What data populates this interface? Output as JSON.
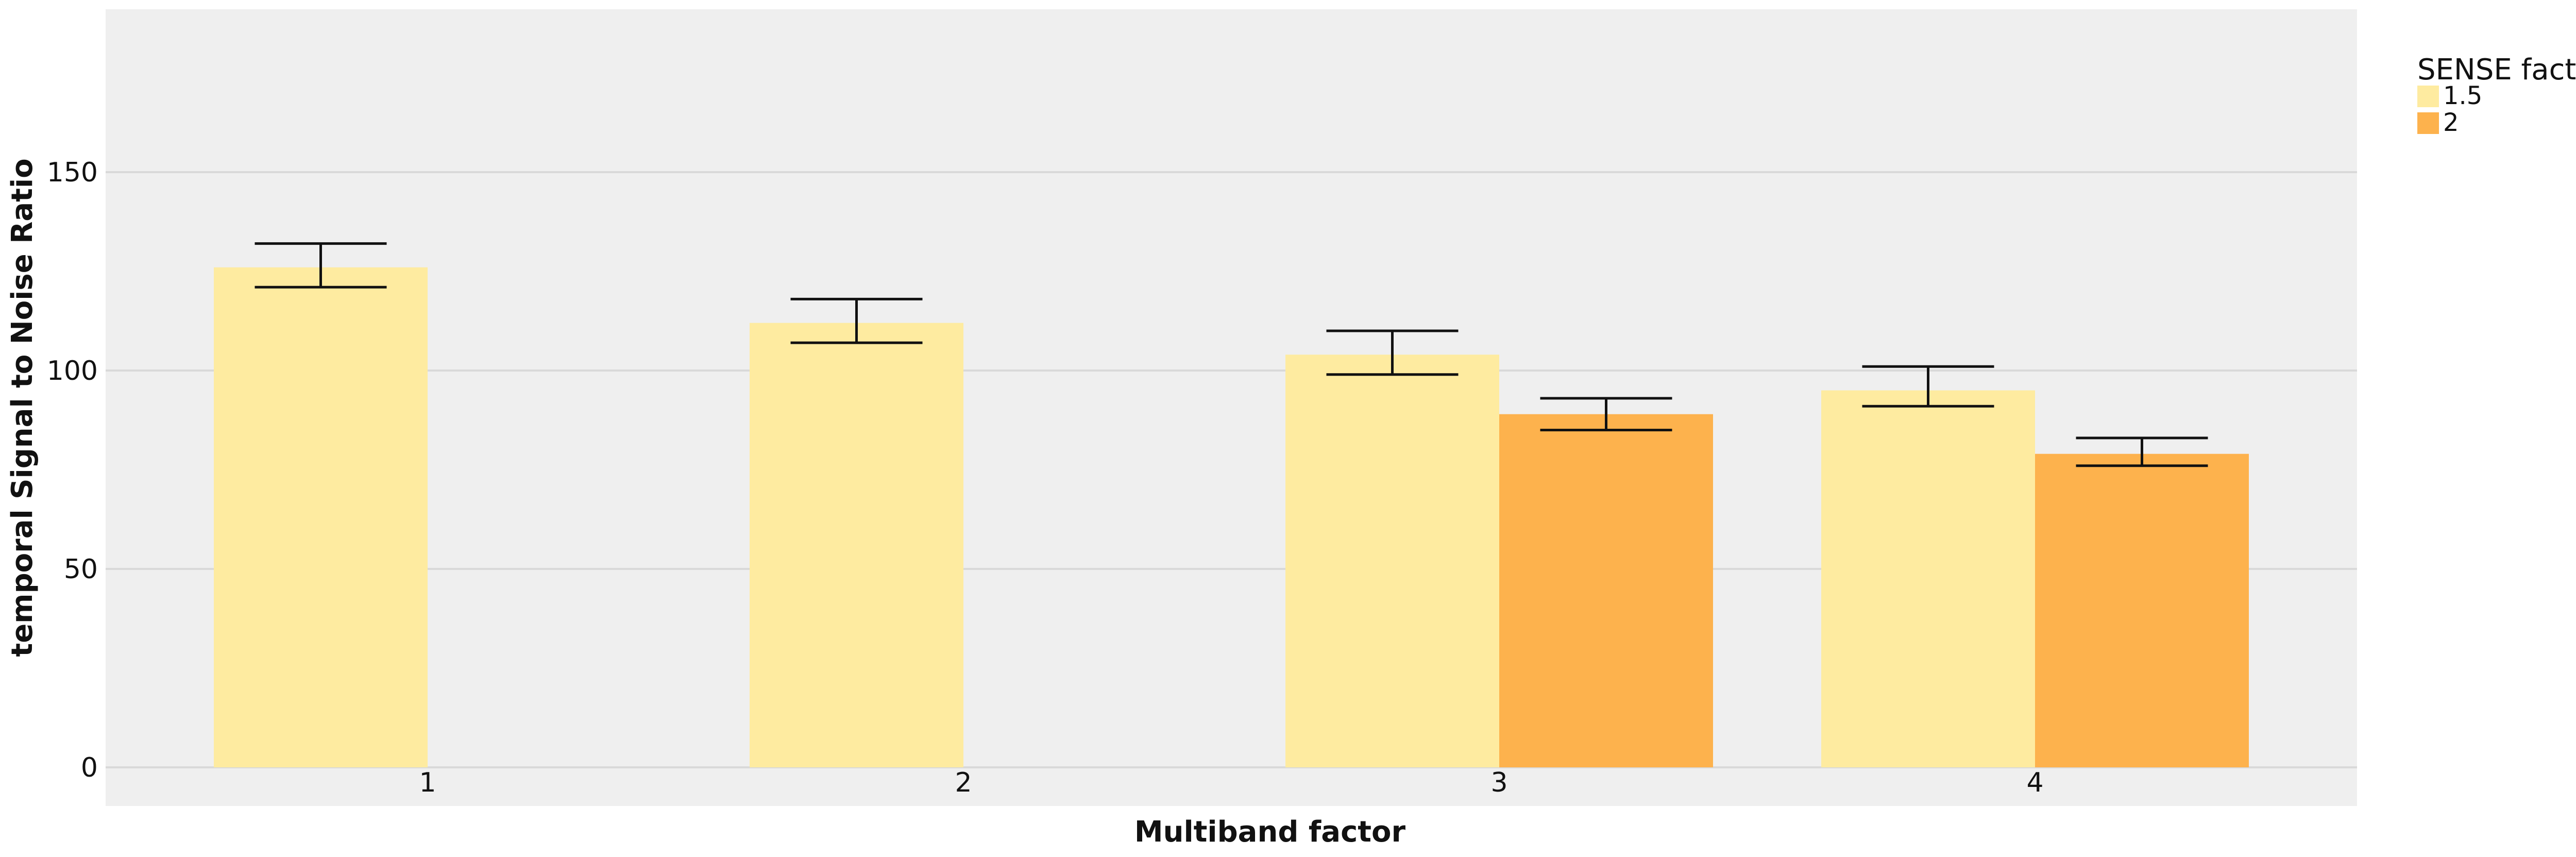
{
  "chart_data": {
    "type": "bar",
    "title": "",
    "xlabel": "Multiband factor",
    "ylabel": "temporal Signal to Noise Ratio",
    "categories": [
      "1",
      "2",
      "3",
      "4"
    ],
    "ylim": [
      0,
      187
    ],
    "yticks": [
      0,
      50,
      100,
      150
    ],
    "ytick_labels": [
      "0",
      "50",
      "100",
      "150"
    ],
    "grid": true,
    "legend": {
      "title": "SENSE factor",
      "position": "right-top"
    },
    "series": [
      {
        "name": "1.5",
        "color": "#FEEBA0",
        "values": [
          126,
          112,
          104,
          95
        ],
        "error_low": [
          121,
          107,
          99,
          91
        ],
        "error_high": [
          132,
          118,
          110,
          101
        ]
      },
      {
        "name": "2",
        "color": "#FDB24D",
        "values": [
          null,
          null,
          89,
          79
        ],
        "error_low": [
          null,
          null,
          85,
          76
        ],
        "error_high": [
          null,
          null,
          93,
          83
        ]
      }
    ],
    "colors": {
      "panel_background": "#EFEFEF",
      "gridline": "#D9D9D9",
      "errorbar": "#111111"
    }
  }
}
